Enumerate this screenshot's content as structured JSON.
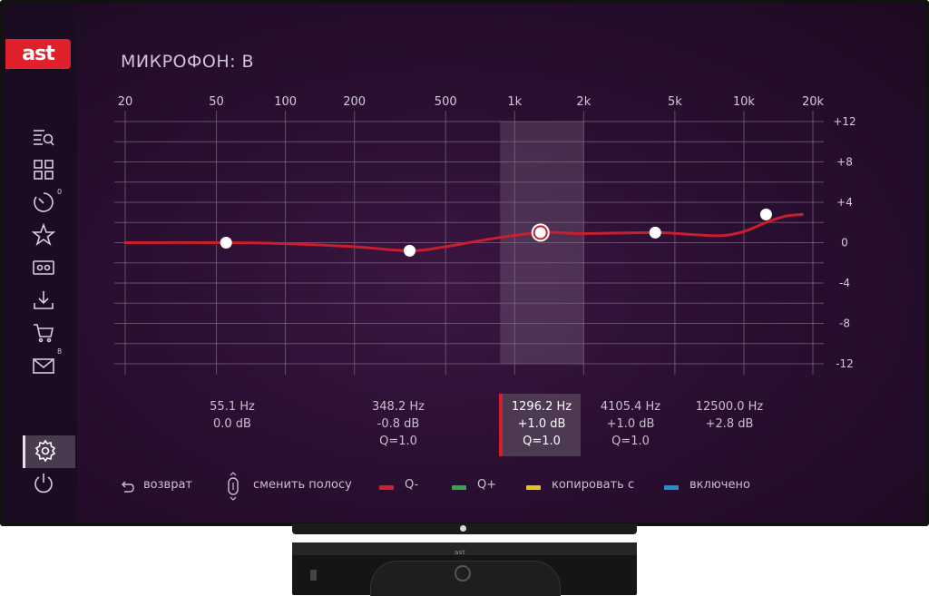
{
  "header": {
    "title": "МИКРОФОН: В"
  },
  "logo_text": "ast",
  "sidebar": {
    "items": [
      {
        "name": "search-list",
        "icon": "search-list-icon"
      },
      {
        "name": "apps",
        "icon": "grid-icon"
      },
      {
        "name": "history",
        "icon": "timer-icon",
        "badge": "0"
      },
      {
        "name": "favorites",
        "icon": "star-icon"
      },
      {
        "name": "recordings",
        "icon": "tape-icon"
      },
      {
        "name": "downloads",
        "icon": "download-icon"
      },
      {
        "name": "shop",
        "icon": "cart-icon"
      },
      {
        "name": "messages",
        "icon": "mail-icon",
        "badge": "8"
      },
      {
        "name": "settings",
        "icon": "gear-icon",
        "active": true
      },
      {
        "name": "power",
        "icon": "power-icon"
      }
    ]
  },
  "chart_data": {
    "type": "line",
    "x_scale": "log",
    "x_ticks": [
      "20",
      "50",
      "100",
      "200",
      "500",
      "1k",
      "2k",
      "5k",
      "10k",
      "20k"
    ],
    "y_ticks": [
      "+12",
      "+8",
      "+4",
      "0",
      "-4",
      "-8",
      "-12"
    ],
    "ylim": [
      -12,
      12
    ],
    "xlim": [
      20,
      20000
    ],
    "curve_color": "#c81e2e",
    "selected_range_hz": [
      1000,
      2000
    ],
    "curve": [
      {
        "x": 20,
        "y": 0
      },
      {
        "x": 55.1,
        "y": 0
      },
      {
        "x": 100,
        "y": -0.1
      },
      {
        "x": 200,
        "y": -0.4
      },
      {
        "x": 348.2,
        "y": -0.8
      },
      {
        "x": 500,
        "y": -0.4
      },
      {
        "x": 800,
        "y": 0.4
      },
      {
        "x": 1296.2,
        "y": 1.0
      },
      {
        "x": 2000,
        "y": 0.9
      },
      {
        "x": 4105.4,
        "y": 1.0
      },
      {
        "x": 6000,
        "y": 0.8
      },
      {
        "x": 8000,
        "y": 0.7
      },
      {
        "x": 10000,
        "y": 1.1
      },
      {
        "x": 12500,
        "y": 2.0
      },
      {
        "x": 15000,
        "y": 2.6
      },
      {
        "x": 18000,
        "y": 2.8
      }
    ],
    "points": [
      {
        "freq": 55.1,
        "gain": 0.0
      },
      {
        "freq": 348.2,
        "gain": -0.8
      },
      {
        "freq": 1296.2,
        "gain": 1.0,
        "selected": true
      },
      {
        "freq": 4105.4,
        "gain": 1.0
      },
      {
        "freq": 12500.0,
        "gain": 2.8
      }
    ]
  },
  "bands": [
    {
      "freq": "55.1 Hz",
      "gain": "0.0 dB",
      "q": ""
    },
    {
      "freq": "348.2 Hz",
      "gain": "-0.8 dB",
      "q": "Q=1.0"
    },
    {
      "freq": "1296.2 Hz",
      "gain": "+1.0 dB",
      "q": "Q=1.0",
      "active": true
    },
    {
      "freq": "4105.4 Hz",
      "gain": "+1.0 dB",
      "q": "Q=1.0"
    },
    {
      "freq": "12500.0 Hz",
      "gain": "+2.8 dB",
      "q": ""
    }
  ],
  "footer": {
    "back_label": "возврат",
    "switch_band_label": "сменить полосу",
    "red_label": "Q-",
    "green_label": "Q+",
    "yellow_label": "копировать с",
    "blue_label": "включено",
    "colors": {
      "red": "#d41f2a",
      "green": "#2ea84a",
      "yellow": "#e8c21a",
      "blue": "#1f8fd8"
    }
  },
  "device": {
    "logo": "ast"
  }
}
